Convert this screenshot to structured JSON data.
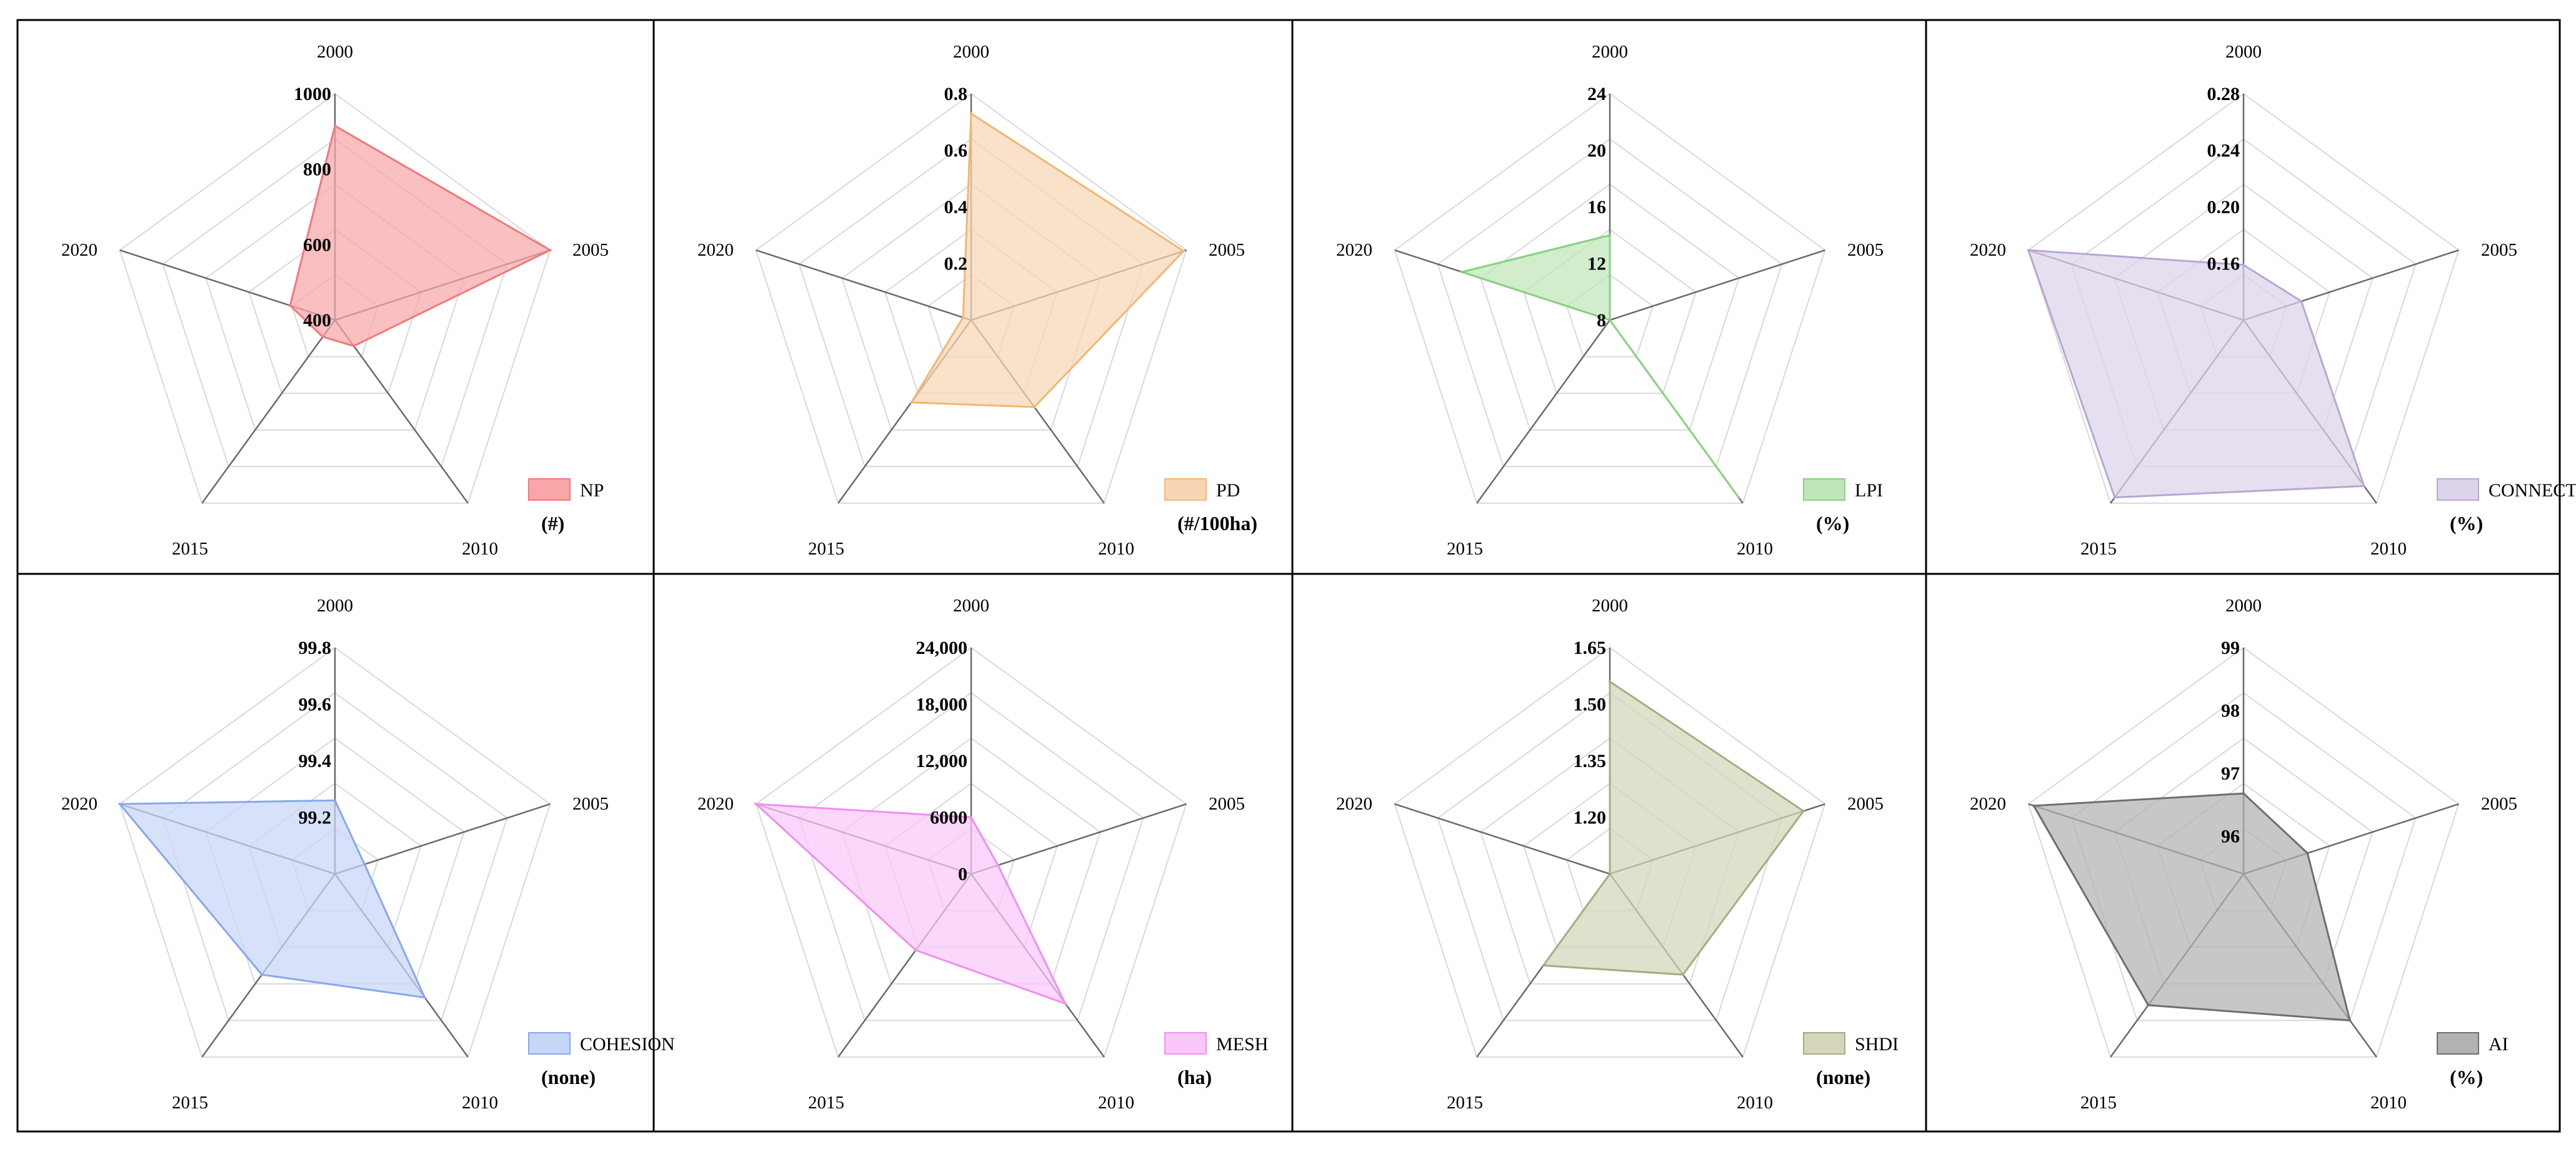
{
  "figure": {
    "categories": [
      "2000",
      "2005",
      "2010",
      "2015",
      "2020"
    ]
  },
  "chart_data": [
    {
      "type": "radar",
      "metric": "NP",
      "unit": "(#)",
      "categories": [
        "2000",
        "2005",
        "2010",
        "2015",
        "2020"
      ],
      "values": [
        915,
        1000,
        485,
        455,
        525
      ],
      "rmin": 400,
      "rmax": 1000,
      "ticks": [
        "400",
        "600",
        "800",
        "1000"
      ],
      "tick_values": [
        400,
        600,
        800,
        1000
      ],
      "color": "#f4777a",
      "fill": "#f8a6a8"
    },
    {
      "type": "radar",
      "metric": "PD",
      "unit": "(#/100ha)",
      "categories": [
        "2000",
        "2005",
        "2010",
        "2015",
        "2020"
      ],
      "values": [
        0.73,
        0.79,
        0.38,
        0.36,
        0.03
      ],
      "rmin": 0,
      "rmax": 0.8,
      "ticks": [
        "0.2",
        "0.4",
        "0.6",
        "0.8"
      ],
      "tick_values": [
        0.2,
        0.4,
        0.6,
        0.8
      ],
      "color": "#f3b672",
      "fill": "#f8d6b4"
    },
    {
      "type": "radar",
      "metric": "LPI",
      "unit": "(%)",
      "categories": [
        "2000",
        "2005",
        "2010",
        "2015",
        "2020"
      ],
      "values": [
        14,
        8,
        23.5,
        8,
        19
      ],
      "rmin": 8,
      "rmax": 24,
      "ticks": [
        "8",
        "12",
        "16",
        "20",
        "24"
      ],
      "tick_values": [
        8,
        12,
        16,
        20,
        24
      ],
      "color": "#86d07e",
      "fill": "#bfe6b9"
    },
    {
      "type": "radar",
      "metric": "CONNECT",
      "unit": "(%)",
      "categories": [
        "2000",
        "2005",
        "2010",
        "2015",
        "2020"
      ],
      "values": [
        0.159,
        0.163,
        0.265,
        0.275,
        0.28
      ],
      "rmin": 0.12,
      "rmax": 0.28,
      "ticks": [
        "0.16",
        "0.20",
        "0.24",
        "0.28"
      ],
      "tick_values": [
        0.16,
        0.2,
        0.24,
        0.28
      ],
      "color": "#b8a6d6",
      "fill": "#ddd3ea"
    },
    {
      "type": "radar",
      "metric": "COHESION",
      "unit": "(none)",
      "categories": [
        "2000",
        "2005",
        "2010",
        "2015",
        "2020"
      ],
      "values": [
        99.26,
        99.11,
        99.54,
        99.44,
        99.8
      ],
      "rmin": 99.0,
      "rmax": 99.8,
      "ticks": [
        "99.2",
        "99.4",
        "99.6",
        "99.8"
      ],
      "tick_values": [
        99.2,
        99.4,
        99.6,
        99.8
      ],
      "color": "#86a8ec",
      "fill": "#c7d6f6"
    },
    {
      "type": "radar",
      "metric": "MESH",
      "unit": "(ha)",
      "categories": [
        "2000",
        "2005",
        "2010",
        "2015",
        "2020"
      ],
      "values": [
        6000,
        3000,
        17000,
        10000,
        24000
      ],
      "rmin": 0,
      "rmax": 24000,
      "ticks": [
        "0",
        "6000",
        "12,000",
        "18,000",
        "24,000"
      ],
      "tick_values": [
        0,
        6000,
        12000,
        18000,
        24000
      ],
      "color": "#f08ef0",
      "fill": "#fac7fa"
    },
    {
      "type": "radar",
      "metric": "SHDI",
      "unit": "(none)",
      "categories": [
        "2000",
        "2005",
        "2010",
        "2015",
        "2020"
      ],
      "values": [
        1.56,
        1.59,
        1.38,
        1.35,
        1.05
      ],
      "rmin": 1.05,
      "rmax": 1.65,
      "ticks": [
        "1.20",
        "1.35",
        "1.50",
        "1.65"
      ],
      "tick_values": [
        1.2,
        1.35,
        1.5,
        1.65
      ],
      "color": "#a8ab80",
      "fill": "#d4d5b9"
    },
    {
      "type": "radar",
      "metric": "AI",
      "unit": "(%)",
      "categories": [
        "2000",
        "2005",
        "2010",
        "2015",
        "2020"
      ],
      "values": [
        96.68,
        96.47,
        98.28,
        97.98,
        98.91
      ],
      "rmin": 95.4,
      "rmax": 99,
      "ticks": [
        "96",
        "97",
        "98",
        "99"
      ],
      "tick_values": [
        96,
        97,
        98,
        99
      ],
      "color": "#6e6e6e",
      "fill": "#b2b2b2"
    }
  ]
}
